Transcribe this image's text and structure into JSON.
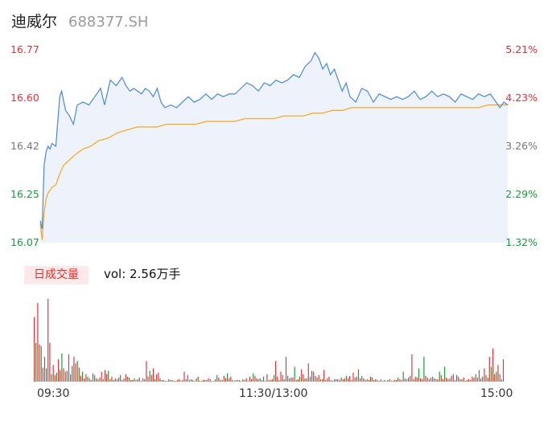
{
  "header": {
    "name": "迪威尔",
    "code": "688377.SH"
  },
  "colors": {
    "up": "#e8313a",
    "down": "#1a9a3a",
    "neutral": "#777777",
    "price_line": "#4a88e0",
    "avg_line": "#f5a623",
    "area_fill": "#eef3fb"
  },
  "volume_panel": {
    "tag": "日成交量",
    "label": "vol: 2.56万手"
  },
  "chart_data": {
    "type": "line",
    "title": "",
    "y_left_ticks": [
      "16.77",
      "16.60",
      "16.42",
      "16.25",
      "16.07"
    ],
    "y_right_ticks": [
      "5.21%",
      "4.23%",
      "3.26%",
      "2.29%",
      "1.32%"
    ],
    "x_ticks": [
      "09:30",
      "11:30/13:00",
      "15:00"
    ],
    "ylim": [
      16.07,
      16.77
    ],
    "x_range": [
      0,
      240
    ],
    "series": [
      {
        "key": "price",
        "x": [
          0,
          1,
          2,
          3,
          4,
          5,
          6,
          8,
          10,
          11,
          13,
          15,
          17,
          19,
          22,
          25,
          28,
          31,
          33,
          36,
          39,
          42,
          44,
          46,
          48,
          50,
          52,
          54,
          56,
          58,
          60,
          62,
          64,
          67,
          70,
          73,
          76,
          79,
          82,
          85,
          88,
          91,
          94,
          97,
          100,
          103,
          106,
          109,
          112,
          115,
          118,
          121,
          124,
          127,
          130,
          133,
          136,
          139,
          141,
          143,
          145,
          147,
          149,
          151,
          153,
          155,
          157,
          159,
          162,
          165,
          168,
          171,
          174,
          177,
          180,
          183,
          186,
          189,
          192,
          195,
          198,
          201,
          204,
          207,
          210,
          213,
          216,
          219,
          222,
          225,
          228,
          231,
          234,
          236,
          238,
          240
        ],
        "values": [
          16.15,
          16.12,
          16.35,
          16.4,
          16.42,
          16.41,
          16.43,
          16.42,
          16.6,
          16.62,
          16.55,
          16.53,
          16.5,
          16.57,
          16.58,
          16.57,
          16.6,
          16.63,
          16.57,
          16.66,
          16.64,
          16.67,
          16.64,
          16.62,
          16.63,
          16.62,
          16.61,
          16.63,
          16.62,
          16.6,
          16.63,
          16.58,
          16.56,
          16.57,
          16.56,
          16.58,
          16.6,
          16.58,
          16.59,
          16.61,
          16.59,
          16.61,
          16.6,
          16.61,
          16.61,
          16.63,
          16.65,
          16.64,
          16.62,
          16.65,
          16.64,
          16.66,
          16.65,
          16.66,
          16.68,
          16.67,
          16.71,
          16.73,
          16.76,
          16.74,
          16.7,
          16.72,
          16.68,
          16.7,
          16.66,
          16.62,
          16.65,
          16.6,
          16.58,
          16.63,
          16.62,
          16.58,
          16.61,
          16.6,
          16.59,
          16.6,
          16.59,
          16.6,
          16.62,
          16.59,
          16.6,
          16.62,
          16.6,
          16.61,
          16.6,
          16.58,
          16.61,
          16.6,
          16.59,
          16.61,
          16.6,
          16.61,
          16.58,
          16.56,
          16.58,
          16.57
        ]
      },
      {
        "key": "avg",
        "x": [
          0,
          1,
          2,
          3,
          4,
          6,
          8,
          10,
          12,
          15,
          18,
          22,
          26,
          30,
          35,
          40,
          45,
          50,
          55,
          60,
          65,
          70,
          75,
          80,
          85,
          90,
          95,
          100,
          105,
          110,
          115,
          120,
          125,
          130,
          135,
          140,
          145,
          150,
          155,
          160,
          165,
          170,
          175,
          180,
          185,
          190,
          195,
          200,
          205,
          210,
          215,
          220,
          225,
          230,
          235,
          240
        ],
        "values": [
          16.14,
          16.08,
          16.18,
          16.23,
          16.25,
          16.27,
          16.28,
          16.32,
          16.35,
          16.37,
          16.39,
          16.41,
          16.42,
          16.44,
          16.45,
          16.47,
          16.48,
          16.49,
          16.49,
          16.49,
          16.5,
          16.5,
          16.5,
          16.5,
          16.51,
          16.51,
          16.51,
          16.51,
          16.52,
          16.52,
          16.52,
          16.52,
          16.53,
          16.53,
          16.53,
          16.54,
          16.54,
          16.55,
          16.55,
          16.56,
          16.56,
          16.56,
          16.56,
          16.56,
          16.56,
          16.56,
          16.56,
          16.56,
          16.56,
          16.56,
          16.56,
          16.56,
          16.56,
          16.57,
          16.57,
          16.57
        ]
      }
    ],
    "volume": {
      "ylim": [
        0,
        100
      ],
      "values": [
        78,
        47,
        95,
        45,
        43,
        17,
        30,
        16,
        100,
        47,
        9,
        20,
        8,
        11,
        27,
        14,
        34,
        16,
        12,
        13,
        33,
        9,
        19,
        30,
        22,
        25,
        17,
        7,
        12,
        4,
        9,
        6,
        4,
        2,
        10,
        8,
        4,
        3,
        5,
        12,
        3,
        14,
        9,
        13,
        3,
        6,
        2,
        4,
        3,
        5,
        8,
        2,
        4,
        9,
        6,
        5,
        2,
        2,
        4,
        2,
        3,
        5,
        1,
        4,
        3,
        25,
        6,
        13,
        8,
        16,
        3,
        9,
        11,
        4,
        2,
        2,
        1,
        1,
        3,
        2,
        2,
        1,
        1,
        2,
        3,
        1,
        2,
        12,
        3,
        8,
        2,
        3,
        2,
        1,
        4,
        6,
        1,
        1,
        2,
        2,
        2,
        4,
        3,
        1,
        1,
        3,
        8,
        5,
        2,
        2,
        7,
        4,
        10,
        4,
        6,
        2,
        1,
        2,
        2,
        2,
        1,
        3,
        2,
        4,
        1,
        6,
        3,
        10,
        7,
        4,
        3,
        4,
        2,
        6,
        1,
        9,
        2,
        2,
        3,
        8,
        25,
        6,
        2,
        12,
        8,
        3,
        30,
        7,
        4,
        5,
        5,
        18,
        2,
        3,
        6,
        15,
        9,
        4,
        4,
        22,
        6,
        13,
        12,
        7,
        5,
        8,
        3,
        3,
        14,
        2,
        4,
        6,
        2,
        1,
        3,
        3,
        3,
        2,
        5,
        3,
        4,
        7,
        4,
        7,
        2,
        11,
        5,
        6,
        15,
        4,
        7,
        4,
        2,
        3,
        2,
        6,
        5,
        2,
        3,
        2,
        1,
        3,
        1,
        2,
        1,
        2,
        3,
        1,
        1,
        2,
        2,
        5,
        3,
        2,
        12,
        4,
        3,
        5,
        7,
        33,
        3,
        6,
        5,
        16,
        4,
        3,
        30,
        7,
        5,
        3,
        5,
        6,
        4,
        3,
        3,
        12,
        8,
        3,
        18,
        5,
        3,
        4,
        7,
        9,
        2,
        8,
        6,
        3,
        3,
        5,
        1,
        2,
        3,
        2,
        6,
        5,
        9,
        5,
        14,
        4,
        6,
        16,
        8,
        5,
        30,
        18,
        40,
        9,
        12,
        20,
        9,
        3,
        27
      ]
    }
  }
}
